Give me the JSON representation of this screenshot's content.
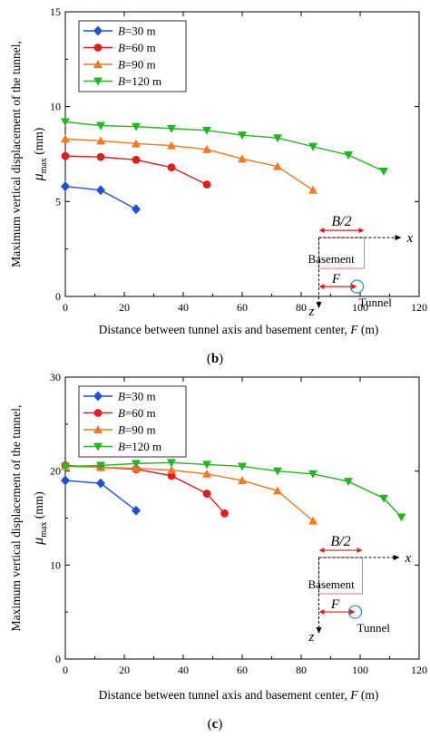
{
  "chart_data": [
    {
      "type": "line",
      "panel_label": "(b)",
      "xlabel": "Distance between tunnel axis and basement center, F (m)",
      "ylabel_line1": "Maximum vertical displacement of the tunnel,",
      "ylabel_symbol": "μ",
      "ylabel_subscript": "max",
      "ylabel_unit": " (mm)",
      "xlim": [
        0,
        120
      ],
      "ylim": [
        0,
        15
      ],
      "xticks": [
        0,
        20,
        40,
        60,
        80,
        100,
        120
      ],
      "yticks": [
        0,
        5,
        10,
        15
      ],
      "legend_position": "top-left",
      "series": [
        {
          "name": "B=30 m",
          "legend_var": "B",
          "legend_rest": "=30 m",
          "color": "#1f4fe0",
          "marker": "diamond",
          "x": [
            0,
            12,
            24
          ],
          "y": [
            5.8,
            5.6,
            4.6
          ]
        },
        {
          "name": "B=60 m",
          "legend_var": "B",
          "legend_rest": "=60 m",
          "color": "#e21b1b",
          "marker": "circle",
          "x": [
            0,
            12,
            24,
            36,
            48
          ],
          "y": [
            7.4,
            7.35,
            7.2,
            6.8,
            5.9
          ]
        },
        {
          "name": "B=90 m",
          "legend_var": "B",
          "legend_rest": "=90 m",
          "color": "#f47a1c",
          "marker": "triangle-up",
          "x": [
            0,
            12,
            24,
            36,
            48,
            60,
            72,
            84
          ],
          "y": [
            8.3,
            8.2,
            8.05,
            7.95,
            7.75,
            7.25,
            6.85,
            5.6
          ]
        },
        {
          "name": "B=120 m",
          "legend_var": "B",
          "legend_rest": "=120 m",
          "color": "#1fb81f",
          "marker": "triangle-down",
          "x": [
            0,
            12,
            24,
            36,
            48,
            60,
            72,
            84,
            96,
            108
          ],
          "y": [
            9.2,
            9.0,
            8.95,
            8.85,
            8.75,
            8.5,
            8.35,
            7.9,
            7.45,
            6.6
          ]
        }
      ],
      "inset": {
        "half_width_label": "B/2",
        "x_axis": "x",
        "z_axis": "z",
        "basement_label": "Basement",
        "offset_label": "F",
        "tunnel_label": "Tunnel"
      }
    },
    {
      "type": "line",
      "panel_label": "(c)",
      "xlabel": "Distance between tunnel axis and basement center, F (m)",
      "ylabel_line1": "Maximum vertical displacement of the tunnel,",
      "ylabel_symbol": "μ",
      "ylabel_subscript": "max",
      "ylabel_unit": " (mm)",
      "xlim": [
        0,
        120
      ],
      "ylim": [
        0,
        30
      ],
      "xticks": [
        0,
        20,
        40,
        60,
        80,
        100,
        120
      ],
      "yticks": [
        0,
        10,
        20,
        30
      ],
      "legend_position": "top-left",
      "series": [
        {
          "name": "B=30 m",
          "legend_var": "B",
          "legend_rest": "=30 m",
          "color": "#1f4fe0",
          "marker": "diamond",
          "x": [
            0,
            12,
            24
          ],
          "y": [
            19.0,
            18.7,
            15.8
          ]
        },
        {
          "name": "B=60 m",
          "legend_var": "B",
          "legend_rest": "=60 m",
          "color": "#e21b1b",
          "marker": "circle",
          "x": [
            0,
            12,
            24,
            36,
            48,
            54
          ],
          "y": [
            20.6,
            20.4,
            20.2,
            19.5,
            17.6,
            15.5
          ]
        },
        {
          "name": "B=90 m",
          "legend_var": "B",
          "legend_rest": "=90 m",
          "color": "#f47a1c",
          "marker": "triangle-up",
          "x": [
            0,
            12,
            24,
            36,
            48,
            60,
            72,
            84
          ],
          "y": [
            20.5,
            20.4,
            20.3,
            20.1,
            19.7,
            19.0,
            17.9,
            14.7
          ]
        },
        {
          "name": "B=120 m",
          "legend_var": "B",
          "legend_rest": "=120 m",
          "color": "#1fb81f",
          "marker": "triangle-down",
          "x": [
            0,
            12,
            24,
            36,
            48,
            60,
            72,
            84,
            96,
            108,
            114
          ],
          "y": [
            20.5,
            20.6,
            20.8,
            20.9,
            20.7,
            20.5,
            20.0,
            19.7,
            18.9,
            17.1,
            15.1
          ]
        }
      ],
      "inset": {
        "half_width_label": "B/2",
        "x_axis": "x",
        "z_axis": "z",
        "basement_label": "Basement",
        "offset_label": "F",
        "tunnel_label": "Tunnel"
      }
    }
  ]
}
